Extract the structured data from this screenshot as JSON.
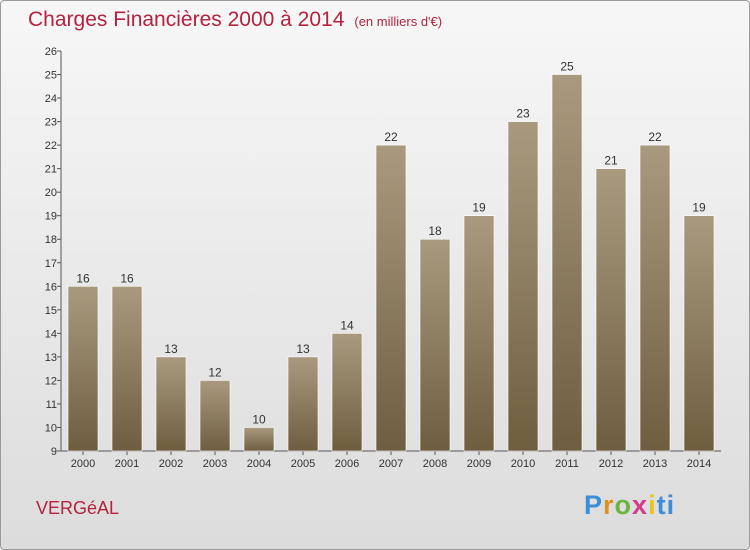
{
  "header": {
    "title": "Charges Financières 2000 à 2014",
    "subtitle": "(en milliers d'€)"
  },
  "footer": {
    "commune": "VERGéAL",
    "logo_letters": [
      "P",
      "r",
      "o",
      "x",
      "i",
      "ti"
    ]
  },
  "colors": {
    "accent": "#b5223e",
    "bar_top": "#a99a7f",
    "bar_bottom": "#6f5d40"
  },
  "chart_data": {
    "type": "bar",
    "title": "Charges Financières 2000 à 2014",
    "subtitle": "(en milliers d'€)",
    "xlabel": "",
    "ylabel": "",
    "categories": [
      "2000",
      "2001",
      "2002",
      "2003",
      "2004",
      "2005",
      "2006",
      "2007",
      "2008",
      "2009",
      "2010",
      "2011",
      "2012",
      "2013",
      "2014"
    ],
    "values": [
      16,
      16,
      13,
      12,
      10,
      13,
      14,
      22,
      18,
      19,
      23,
      25,
      21,
      22,
      19
    ],
    "ylim": [
      9,
      26
    ],
    "yticks": [
      9,
      10,
      11,
      12,
      13,
      14,
      15,
      16,
      17,
      18,
      19,
      20,
      21,
      22,
      23,
      24,
      25,
      26
    ],
    "grid": false,
    "legend": "none"
  }
}
